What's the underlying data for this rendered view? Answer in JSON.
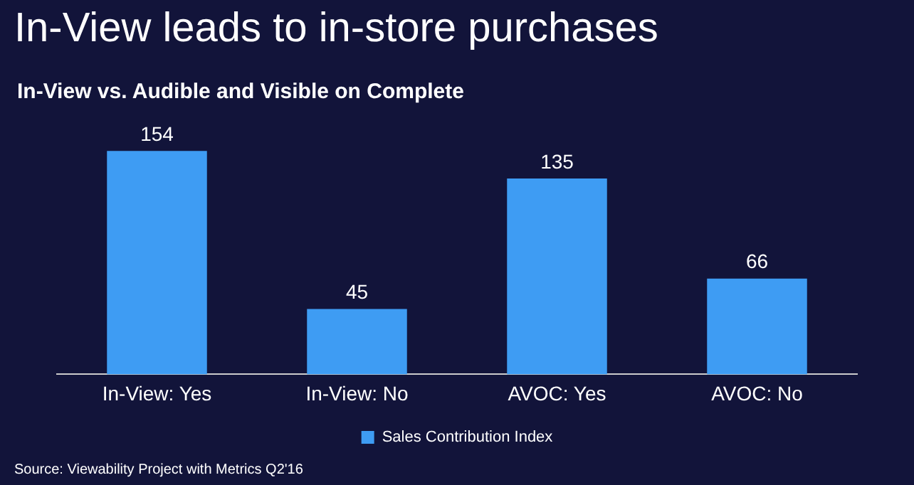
{
  "chart_data": {
    "type": "bar",
    "title": "In-View leads to in-store purchases",
    "subtitle": "In-View vs. Audible and Visible on Complete",
    "categories": [
      "In-View: Yes",
      "In-View: No",
      "AVOC: Yes",
      "AVOC: No"
    ],
    "series": [
      {
        "name": "Sales Contribution Index",
        "color": "#3e9cf3",
        "values": [
          154,
          45,
          135,
          66
        ]
      }
    ],
    "data_labels": true,
    "legend": "bottom",
    "grid": false,
    "annotations": [
      "Source: Viewability Project with Metrics Q2'16"
    ]
  }
}
